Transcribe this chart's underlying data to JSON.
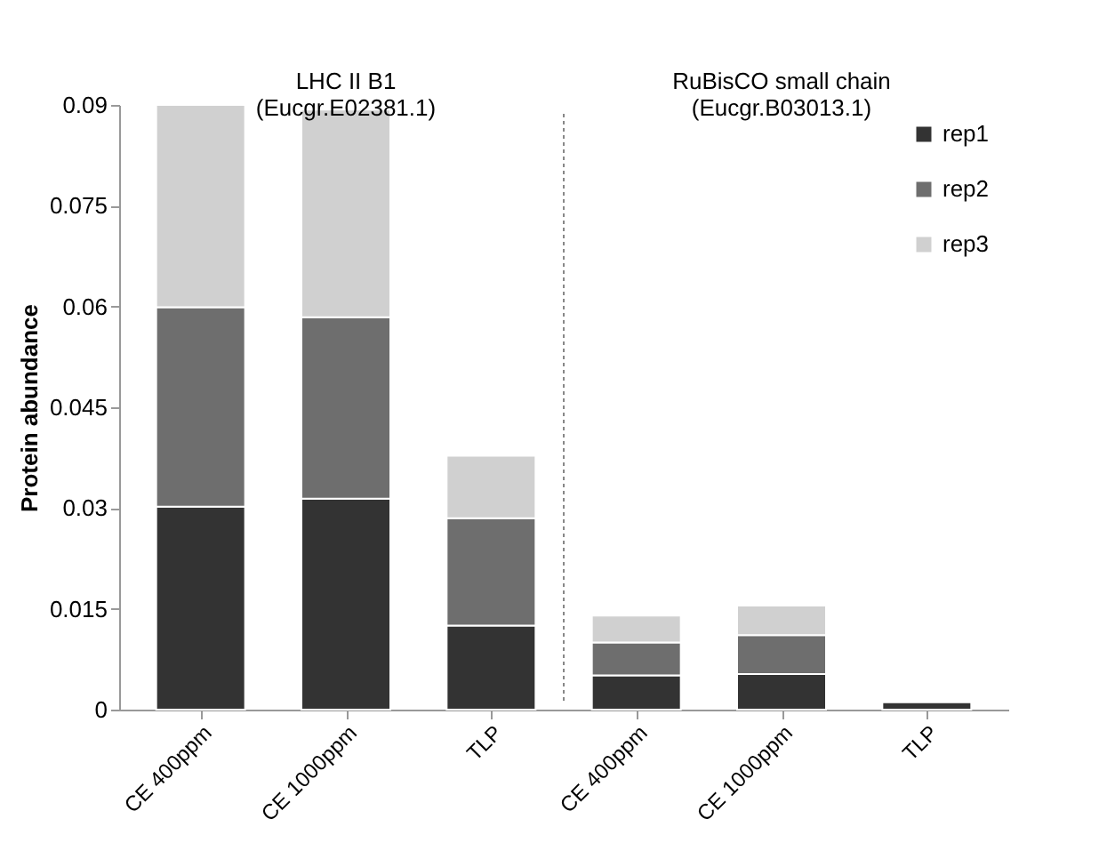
{
  "chart_data": {
    "type": "bar",
    "stacked": true,
    "ylabel": "Protein abundance",
    "categories": [
      "CE 400ppm",
      "CE 1000ppm",
      "TLP",
      "CE 400ppm",
      "CE 1000ppm",
      "TLP"
    ],
    "series": [
      {
        "name": "rep1",
        "color": "#333333",
        "values": [
          0.0302,
          0.0314,
          0.0125,
          0.0051,
          0.0053,
          0.0011
        ]
      },
      {
        "name": "rep2",
        "color": "#6e6e6e",
        "values": [
          0.0297,
          0.027,
          0.016,
          0.0049,
          0.0058,
          0
        ]
      },
      {
        "name": "rep3",
        "color": "#d0d0d0",
        "values": [
          0.0301,
          0.0309,
          0.0093,
          0.004,
          0.0044,
          0
        ]
      }
    ],
    "ylim": [
      0,
      0.09
    ],
    "yticks": [
      0,
      0.015,
      0.03,
      0.045,
      0.06,
      0.075,
      0.09
    ],
    "annotations": [
      "LHC II B1 (Eucgr.E02381.1)",
      "RuBisCO small chain (Eucgr.B03013.1)"
    ],
    "legend": "top right",
    "grid": false
  }
}
